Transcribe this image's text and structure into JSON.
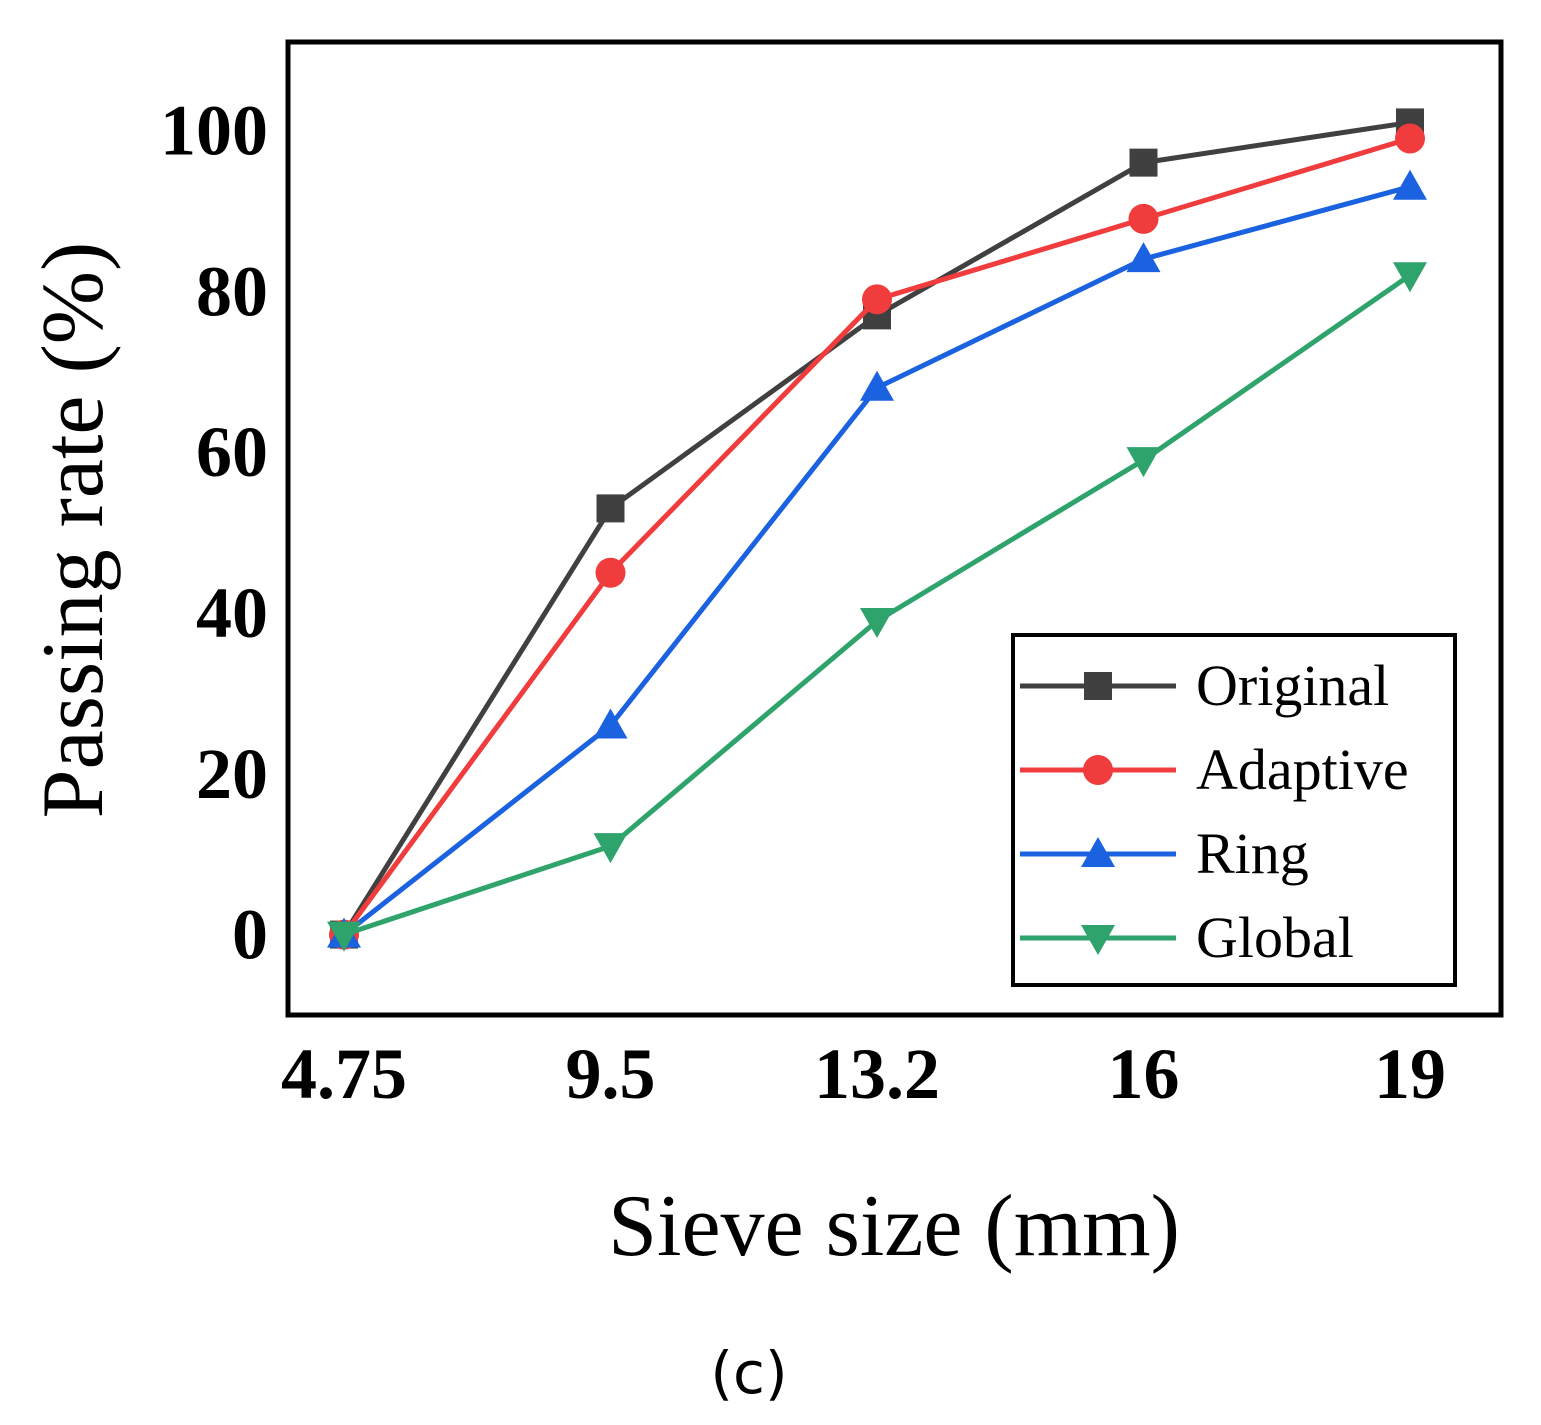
{
  "chart_data": {
    "type": "line",
    "title": "",
    "categories": [
      "4.75",
      "9.5",
      "13.2",
      "16",
      "19"
    ],
    "xlabel": "Sieve size (mm)",
    "ylabel": "Passing rate (%)",
    "ylim": [
      -10,
      111
    ],
    "yticks": [
      0,
      20,
      40,
      60,
      80,
      100
    ],
    "grid": false,
    "legend_position": "bottom-right",
    "series": [
      {
        "name": "Original",
        "color": "#404040",
        "marker": "square",
        "values": [
          0,
          53,
          77,
          96,
          101
        ]
      },
      {
        "name": "Adaptive",
        "color": "#f03c3c",
        "marker": "circle",
        "values": [
          0,
          45,
          79,
          89,
          99
        ]
      },
      {
        "name": "Ring",
        "color": "#1a62e0",
        "marker": "triangle-up",
        "values": [
          0,
          26,
          68,
          84,
          93
        ]
      },
      {
        "name": "Global",
        "color": "#2ea36b",
        "marker": "triangle-down",
        "values": [
          0,
          11,
          39,
          59,
          82
        ]
      }
    ]
  },
  "caption": "(c)"
}
